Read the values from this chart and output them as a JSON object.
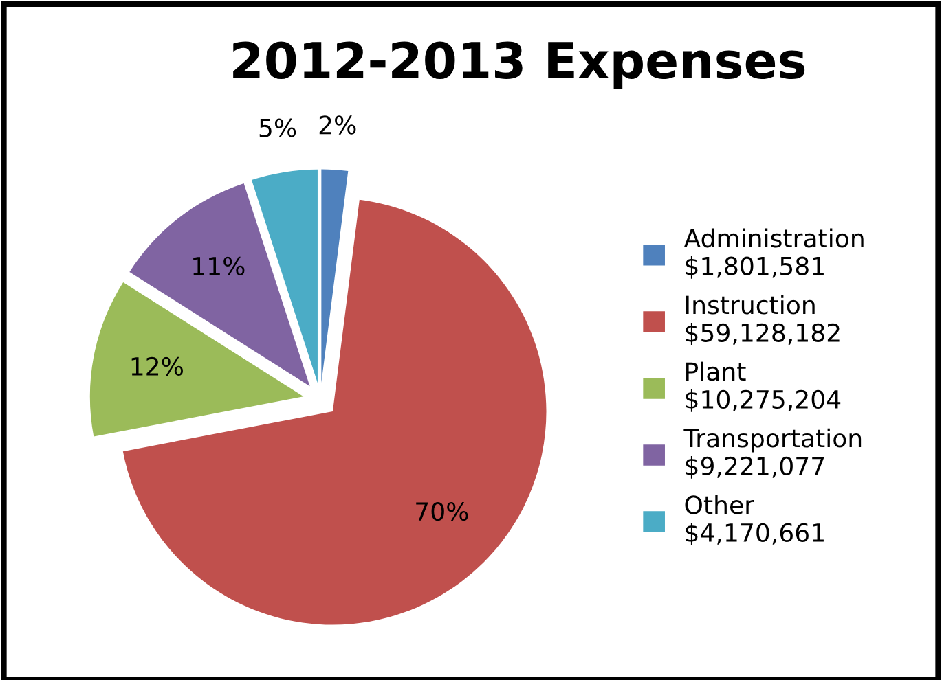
{
  "chart_data": {
    "type": "pie",
    "title": "2012-2013 Expenses",
    "categories": [
      "Administration\n$1,801,581",
      "Instruction\n$59,128,182",
      "Plant\n$10,275,204",
      "Transportation\n$9,221,077",
      "Other\n$4,170,661"
    ],
    "values": [
      2,
      70,
      12,
      11,
      5
    ],
    "colors": [
      "#4f81bd",
      "#c0504d",
      "#9bbb59",
      "#8064a2",
      "#4bacc6"
    ],
    "value_labels": [
      "2%",
      "70%",
      "12%",
      "11%",
      "5%"
    ],
    "legend": "right"
  }
}
